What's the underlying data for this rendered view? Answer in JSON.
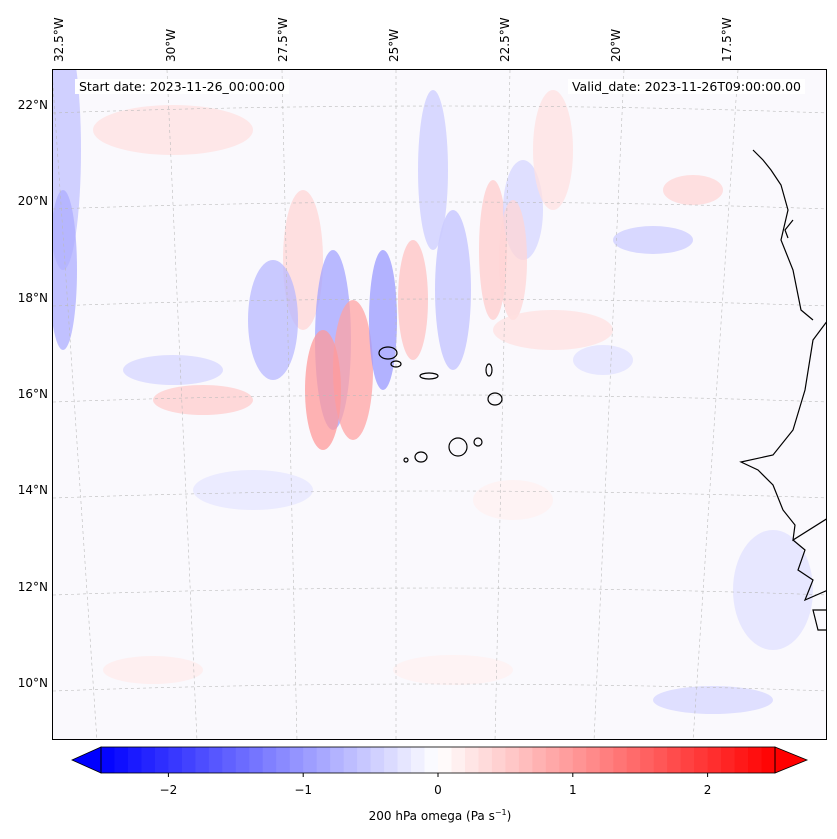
{
  "header": {
    "start_date": "Start date: 2023-11-26_00:00:00",
    "valid_date": "Valid_date: 2023-11-26T09:00:00.00"
  },
  "axes": {
    "lon_labels": [
      "32.5°W",
      "30°W",
      "27.5°W",
      "25°W",
      "22.5°W",
      "20°W",
      "17.5°W"
    ],
    "lat_labels": [
      "22°N",
      "20°N",
      "18°N",
      "16°N",
      "14°N",
      "12°N",
      "10°N"
    ]
  },
  "chart_data": {
    "type": "heatmap",
    "title": "",
    "variable": "200 hPa omega",
    "colorbar": {
      "label": "200 hPa omega (Pa s",
      "label_exp": "−1",
      "label_end": ")",
      "range": [
        -2.5,
        2.5
      ],
      "step": 0.1,
      "extend": "both",
      "colormap": "bwr",
      "ticks": [
        -2,
        -1,
        0,
        1,
        2
      ],
      "tick_labels": [
        "−2",
        "−1",
        "0",
        "1",
        "2"
      ]
    },
    "lon_range": [
      -33,
      -15.5
    ],
    "lat_range": [
      8.8,
      22.8
    ]
  }
}
